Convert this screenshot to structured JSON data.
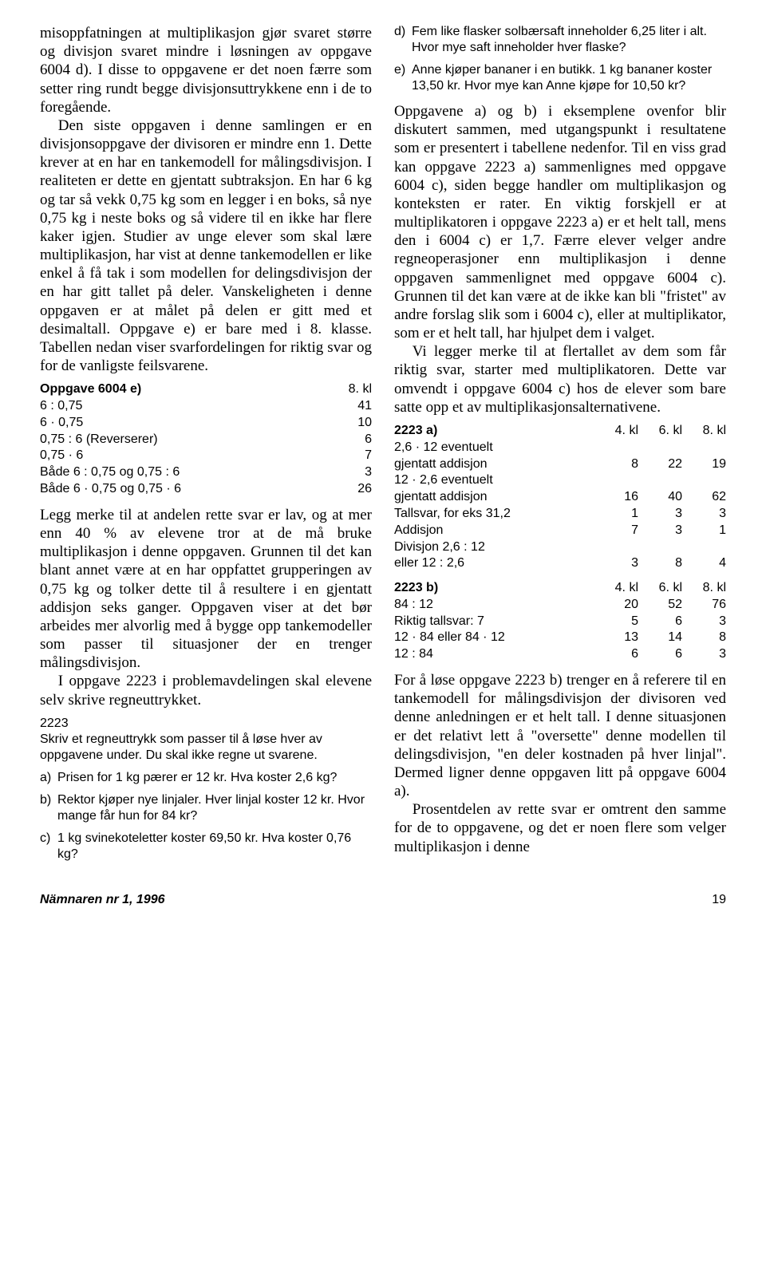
{
  "left": {
    "p1": "misoppfatningen at multiplikasjon gjør svaret større og divisjon svaret mindre i løsningen av oppgave 6004 d). I disse to oppgavene er det noen færre som setter ring rundt begge divisjonsuttrykkene enn i de to foregående.",
    "p2a": "Den siste oppgaven i denne samlingen er en divisjonsoppgave der divisoren er mindre enn 1. Dette krever at en har en tankemodell for målingsdivisjon. I realiteten er dette en gjentatt subtraksjon. En har 6 kg og tar så vekk 0,75 kg som en legger i en boks, så nye 0,75 kg i neste boks og så videre til en ikke har flere kaker igjen. Studier av unge elever som skal lære multiplikasjon, har vist at denne tankemodellen er like enkel å få tak i som modellen for delingsdivisjon der en har gitt tallet på deler. Vanskeligheten i denne oppgaven er at målet på delen er gitt med et desimaltall. Oppgave e) er bare med i 8. klasse. Tabellen nedan viser svarfordelingen for riktig svar og for de vanligste feilsvarene.",
    "table_e": {
      "title": "Oppgave 6004 e)",
      "header_right": "8. kl",
      "rows": [
        {
          "label": "6 : 0,75",
          "v": "41"
        },
        {
          "label": "6 · 0,75",
          "v": "10"
        },
        {
          "label": "0,75 : 6 (Reverserer)",
          "v": "6"
        },
        {
          "label": "0,75 · 6",
          "v": "7"
        },
        {
          "label": "Både 6 : 0,75 og 0,75 : 6",
          "v": "3"
        },
        {
          "label": "Både 6 · 0,75 og 0,75 · 6",
          "v": "26"
        }
      ]
    },
    "p3": "Legg merke til at andelen rette svar er lav, og at mer enn 40 % av elevene tror at de må bruke multiplikasjon i denne oppgaven. Grunnen til det kan blant annet være at en har oppfattet grupperingen av 0,75 kg og tolker dette til å resultere i en gjentatt addisjon seks ganger. Oppgaven viser at det bør arbeides mer alvorlig med å bygge opp tankemodeller som passer til situasjoner der en trenger målingsdivisjon.",
    "p4": "I oppgave 2223 i problemavdelingen skal elevene selv skrive regneuttrykket.",
    "q2223": {
      "title": "2223",
      "intro": "Skriv et regneuttrykk som passer til å løse hver av oppgavene under. Du skal ikke regne ut svarene.",
      "items": [
        {
          "l": "a)",
          "t": "Prisen for 1 kg pærer er 12 kr. Hva koster 2,6 kg?"
        },
        {
          "l": "b)",
          "t": "Rektor kjøper nye linjaler. Hver linjal koster 12 kr. Hvor mange får hun for 84 kr?"
        },
        {
          "l": "c)",
          "t": "1 kg svinekoteletter koster 69,50 kr. Hva koster 0,76 kg?"
        }
      ]
    }
  },
  "right": {
    "items_de": [
      {
        "l": "d)",
        "t": "Fem like flasker solbærsaft inneholder 6,25 liter i alt. Hvor mye saft inneholder hver flaske?"
      },
      {
        "l": "e)",
        "t": "Anne kjøper bananer i en butikk. 1 kg bananer koster 13,50 kr. Hvor mye kan Anne kjøpe for 10,50 kr?"
      }
    ],
    "p1": "Oppgavene a) og b) i eksemplene ovenfor blir diskutert sammen, med utgangspunkt i resultatene som er presentert i tabellene nedenfor. Til en viss grad kan oppgave 2223 a) sammenlignes med oppgave 6004 c), siden begge handler om multiplikasjon og konteksten er rater. En viktig forskjell er at multiplikatoren i oppgave 2223 a) er et helt tall, mens den i 6004 c) er 1,7. Færre elever velger andre regneoperasjoner enn multiplikasjon i denne oppgaven sammenlignet med oppgave 6004 c). Grunnen til det kan være at de ikke kan bli \"fristet\" av andre forslag slik som i 6004 c), eller at multiplikator, som er et helt tall, har hjulpet dem i valget.",
    "p2": "Vi legger merke til at flertallet av dem som får riktig svar, starter med multiplikatoren. Dette var omvendt i oppgave 6004 c) hos de elever som bare satte opp et av multiplikasjonsalternativene.",
    "table_a": {
      "title": "2223 a)",
      "headers": [
        "4. kl",
        "6. kl",
        "8. kl"
      ],
      "rows": [
        {
          "label": "2,6 · 12 eventuelt",
          "v": [
            "",
            "",
            ""
          ]
        },
        {
          "label": "gjentatt addisjon",
          "v": [
            "8",
            "22",
            "19"
          ]
        },
        {
          "label": "12 · 2,6 eventuelt",
          "v": [
            "",
            "",
            ""
          ]
        },
        {
          "label": "gjentatt addisjon",
          "v": [
            "16",
            "40",
            "62"
          ]
        },
        {
          "label": "Tallsvar, for eks 31,2",
          "v": [
            "1",
            "3",
            "3"
          ]
        },
        {
          "label": "Addisjon",
          "v": [
            "7",
            "3",
            "1"
          ]
        },
        {
          "label": "Divisjon 2,6 : 12",
          "v": [
            "",
            "",
            ""
          ]
        },
        {
          "label": "eller 12 : 2,6",
          "v": [
            "3",
            "8",
            "4"
          ]
        }
      ]
    },
    "table_b": {
      "title": "2223 b)",
      "headers": [
        "4. kl",
        "6. kl",
        "8. kl"
      ],
      "rows": [
        {
          "label": "84 : 12",
          "v": [
            "20",
            "52",
            "76"
          ]
        },
        {
          "label": "Riktig tallsvar: 7",
          "v": [
            "5",
            "6",
            "3"
          ]
        },
        {
          "label": "12 · 84 eller 84 · 12",
          "v": [
            "13",
            "14",
            "8"
          ]
        },
        {
          "label": "12 : 84",
          "v": [
            "6",
            "6",
            "3"
          ]
        }
      ]
    },
    "p3": "For å løse oppgave 2223 b) trenger en å referere til en tankemodell for målingsdivisjon der divisoren ved denne anledningen er et helt tall. I denne situasjonen er det relativt lett å \"oversette\" denne modellen til delingsdivisjon, \"en deler kostnaden på hver linjal\". Dermed ligner denne oppgaven litt på oppgave 6004 a).",
    "p4": "Prosentdelen av rette svar er omtrent den samme for de to oppgavene, og det er noen flere som velger multiplikasjon i denne"
  },
  "footer": {
    "journal": "Nämnaren nr 1, 1996",
    "page": "19"
  }
}
